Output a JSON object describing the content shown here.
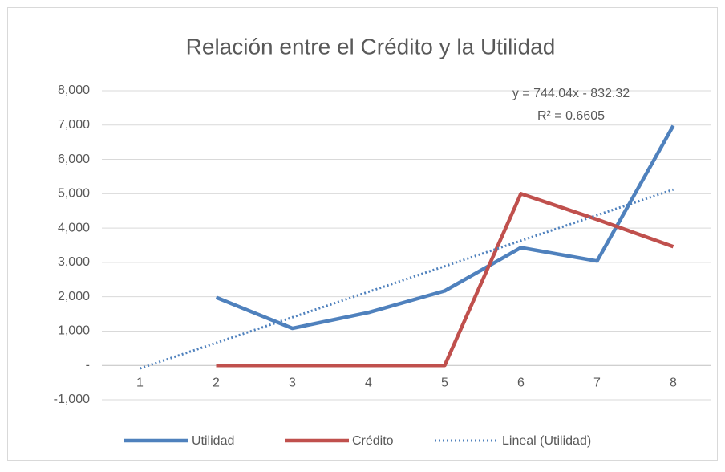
{
  "chart_data": {
    "type": "line",
    "title": "Relación entre el Crédito y la Utilidad",
    "categories": [
      "1",
      "2",
      "3",
      "4",
      "5",
      "6",
      "7",
      "8"
    ],
    "series": [
      {
        "name": "Utilidad",
        "color": "#4f81bd",
        "style": "solid",
        "values": [
          null,
          1980,
          1080,
          1540,
          2170,
          3430,
          3040,
          6980
        ]
      },
      {
        "name": "Crédito",
        "color": "#c0504d",
        "style": "solid",
        "values": [
          null,
          0,
          0,
          0,
          0,
          5000,
          4250,
          3460
        ]
      },
      {
        "name": "Lineal (Utilidad)",
        "color": "#4f81bd",
        "style": "dotted",
        "values": [
          -88.28,
          655.76,
          1399.8,
          2143.84,
          2887.88,
          3631.92,
          4375.96,
          5120
        ]
      }
    ],
    "annotations": [
      "y = 744.04x - 832.32",
      "R² = 0.6605"
    ],
    "ylim": [
      -1000,
      8000
    ],
    "yticks": [
      {
        "value": -1000,
        "label": "-1,000"
      },
      {
        "value": 0,
        "label": "-"
      },
      {
        "value": 1000,
        "label": "1,000"
      },
      {
        "value": 2000,
        "label": "2,000"
      },
      {
        "value": 3000,
        "label": "3,000"
      },
      {
        "value": 4000,
        "label": "4,000"
      },
      {
        "value": 5000,
        "label": "5,000"
      },
      {
        "value": 6000,
        "label": "6,000"
      },
      {
        "value": 7000,
        "label": "7,000"
      },
      {
        "value": 8000,
        "label": "8,000"
      }
    ],
    "grid": true,
    "legend": "bottom"
  }
}
